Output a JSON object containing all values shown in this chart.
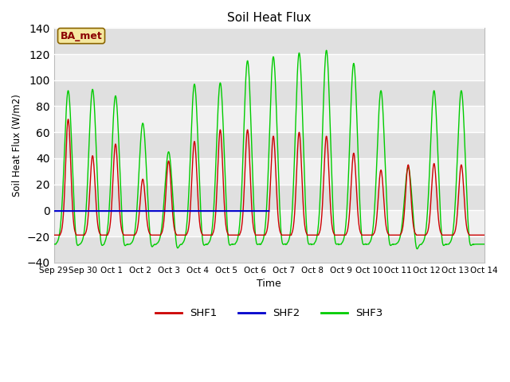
{
  "title": "Soil Heat Flux",
  "ylabel": "Soil Heat Flux (W/m2)",
  "xlabel": "Time",
  "ylim": [
    -40,
    140
  ],
  "yticks": [
    -40,
    -20,
    0,
    20,
    40,
    60,
    80,
    100,
    120,
    140
  ],
  "annotation": "BA_met",
  "background_color": "#ffffff",
  "plot_bg_color": "#ffffff",
  "band_color_dark": "#e0e0e0",
  "band_color_light": "#f0f0f0",
  "series": {
    "SHF1": {
      "color": "#cc0000",
      "lw": 1.0
    },
    "SHF2": {
      "color": "#0000cc",
      "lw": 1.5
    },
    "SHF3": {
      "color": "#00cc00",
      "lw": 1.0
    }
  },
  "peaks_shf1": [
    [
      0.5,
      70
    ],
    [
      1.35,
      42
    ],
    [
      2.15,
      51
    ],
    [
      3.1,
      24
    ],
    [
      4.0,
      38
    ],
    [
      4.9,
      53
    ],
    [
      5.8,
      62
    ],
    [
      6.75,
      62
    ],
    [
      7.65,
      57
    ],
    [
      8.55,
      60
    ],
    [
      9.5,
      57
    ],
    [
      10.45,
      44
    ],
    [
      11.4,
      31
    ],
    [
      12.35,
      35
    ],
    [
      13.25,
      36
    ],
    [
      14.2,
      35
    ]
  ],
  "peaks_shf3": [
    [
      0.5,
      92
    ],
    [
      1.35,
      93
    ],
    [
      2.15,
      88
    ],
    [
      3.1,
      67
    ],
    [
      4.0,
      45
    ],
    [
      4.9,
      97
    ],
    [
      5.8,
      98
    ],
    [
      6.75,
      115
    ],
    [
      7.65,
      118
    ],
    [
      8.55,
      121
    ],
    [
      9.5,
      123
    ],
    [
      10.45,
      113
    ],
    [
      11.4,
      92
    ],
    [
      12.35,
      33
    ],
    [
      13.25,
      92
    ],
    [
      14.2,
      92
    ]
  ],
  "shf2_end_day": 7.5,
  "sigma_narrow": 0.09,
  "sigma_wide": 0.13,
  "night_shf1": -19,
  "night_shf3": -26,
  "xtick_labels": [
    "Sep 29",
    "Sep 30",
    "Oct 1",
    "Oct 2",
    "Oct 3",
    "Oct 4",
    "Oct 5",
    "Oct 6",
    "Oct 7",
    "Oct 8",
    "Oct 9",
    "Oct 10",
    "Oct 11",
    "Oct 12",
    "Oct 13",
    "Oct 14"
  ],
  "xtick_days": [
    0,
    1,
    2,
    3,
    4,
    5,
    6,
    7,
    8,
    9,
    10,
    11,
    12,
    13,
    14,
    15
  ]
}
